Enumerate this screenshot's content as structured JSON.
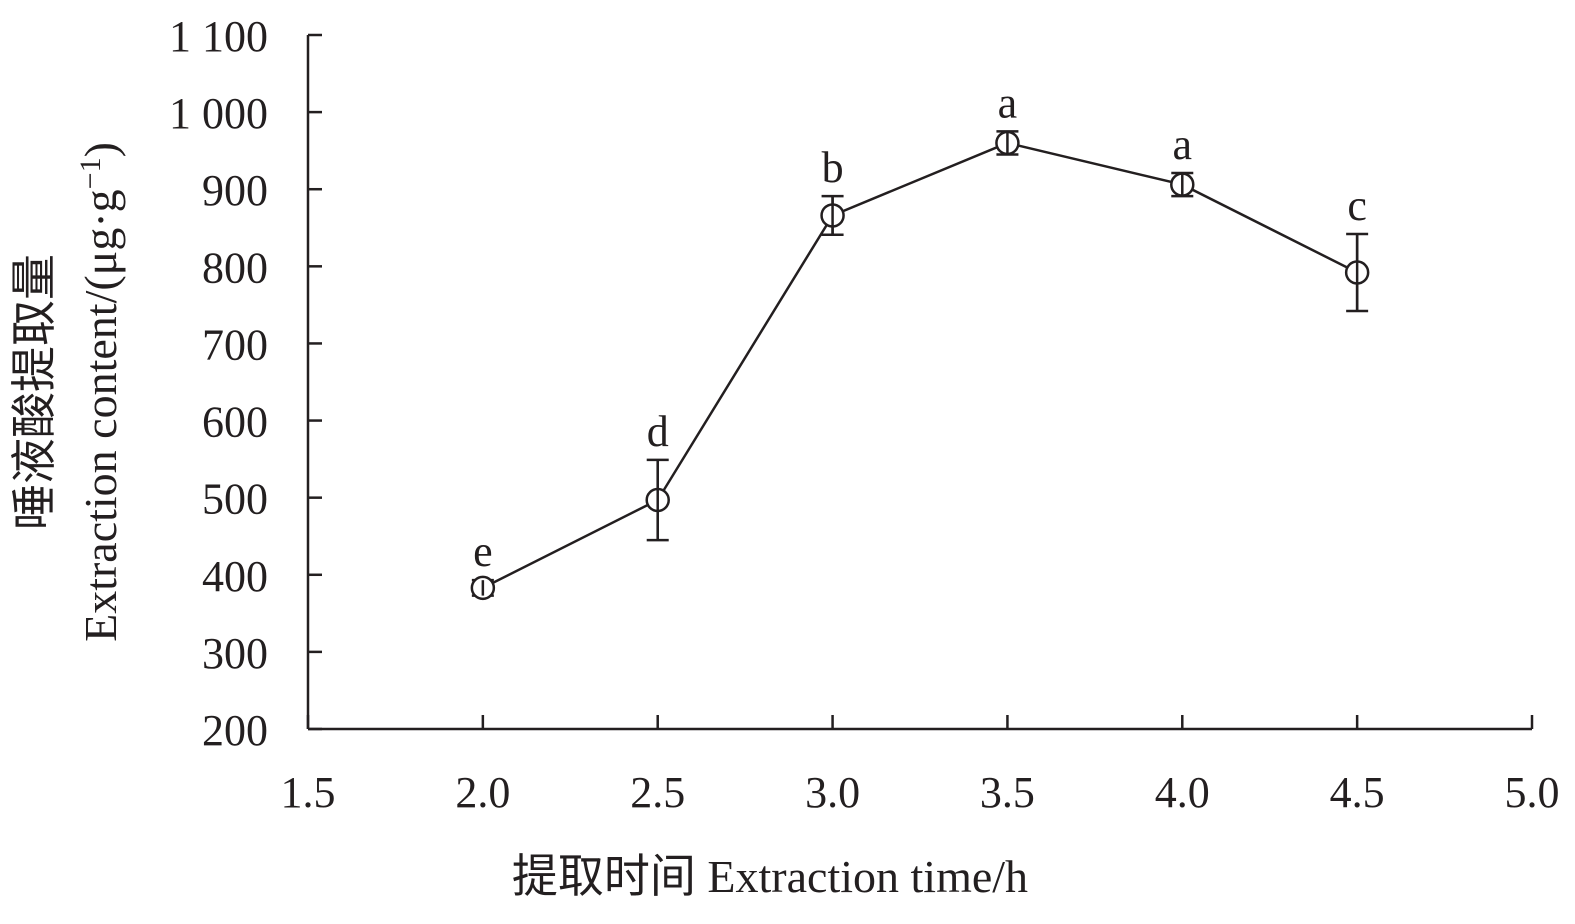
{
  "chart_data": {
    "type": "line",
    "title": "",
    "xlabel": "提取时间 Extraction time/h",
    "ylabel_line1": "唾液酸提取量",
    "ylabel_line2": "Extraction content/(μg·g",
    "ylabel_sup": "−1",
    "ylabel_close": ")",
    "xlim": [
      1.5,
      5.0
    ],
    "ylim": [
      200,
      1100
    ],
    "x_ticks": [
      1.5,
      2.0,
      2.5,
      3.0,
      3.5,
      4.0,
      4.5,
      5.0
    ],
    "x_tick_labels": [
      "1.5",
      "2.0",
      "2.5",
      "3.0",
      "3.5",
      "4.0",
      "4.5",
      "5.0"
    ],
    "y_ticks": [
      200,
      300,
      400,
      500,
      600,
      700,
      800,
      900,
      1000,
      1100
    ],
    "y_tick_labels": [
      "200",
      "300",
      "400",
      "500",
      "600",
      "700",
      "800",
      "900",
      "1 000",
      "1 100"
    ],
    "grid": false,
    "series": [
      {
        "x": [
          2.0,
          2.5,
          3.0,
          3.5,
          4.0,
          4.5
        ],
        "y": [
          383,
          497,
          866,
          960,
          906,
          792
        ],
        "error": [
          10,
          52,
          25,
          15,
          15,
          50
        ],
        "significance": [
          "e",
          "d",
          "b",
          "a",
          "a",
          "c"
        ]
      }
    ]
  }
}
